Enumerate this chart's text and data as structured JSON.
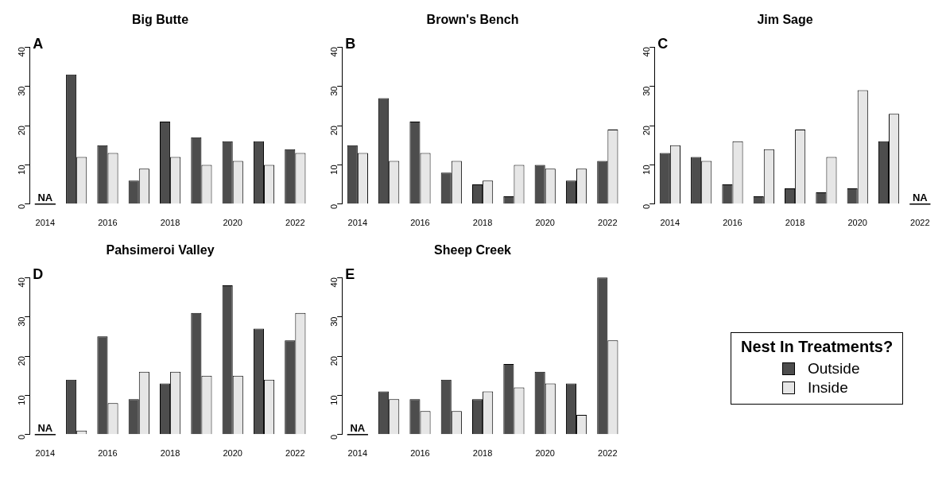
{
  "chart_data": [
    {
      "type": "bar",
      "title": "Big Butte",
      "categories": [
        "2014",
        null,
        "2016",
        null,
        "2018",
        null,
        "2020",
        null,
        "2022"
      ],
      "series": [
        {
          "color": "#4d4d4d",
          "values": [
            null,
            33,
            15,
            6,
            21,
            17,
            16,
            16,
            14
          ]
        },
        {
          "color": "#e6e6e6",
          "values": [
            null,
            12,
            13,
            9,
            12,
            10,
            11,
            10,
            13
          ]
        }
      ],
      "ylim": [
        0,
        40
      ],
      "yticks": [
        0,
        10,
        20,
        30,
        40
      ],
      "grid": false,
      "legend": false,
      "annotations": [
        "A",
        "NA"
      ]
    },
    {
      "type": "bar",
      "title": "Brown's Bench",
      "categories": [
        "2014",
        null,
        "2016",
        null,
        "2018",
        null,
        "2020",
        null,
        "2022"
      ],
      "series": [
        {
          "color": "#4d4d4d",
          "values": [
            15,
            27,
            21,
            8,
            5,
            2,
            10,
            6,
            11
          ]
        },
        {
          "color": "#e6e6e6",
          "values": [
            13,
            11,
            13,
            11,
            6,
            10,
            9,
            9,
            19
          ]
        }
      ],
      "ylim": [
        0,
        40
      ],
      "yticks": [
        0,
        10,
        20,
        30,
        40
      ],
      "grid": false,
      "legend": false,
      "annotations": [
        "B"
      ]
    },
    {
      "type": "bar",
      "title": "Jim Sage",
      "categories": [
        "2014",
        null,
        "2016",
        null,
        "2018",
        null,
        "2020",
        null,
        "2022"
      ],
      "series": [
        {
          "color": "#4d4d4d",
          "values": [
            13,
            12,
            5,
            2,
            4,
            3,
            4,
            16,
            null
          ]
        },
        {
          "color": "#e6e6e6",
          "values": [
            15,
            11,
            16,
            14,
            19,
            12,
            29,
            23,
            null
          ]
        }
      ],
      "ylim": [
        0,
        40
      ],
      "yticks": [
        0,
        10,
        20,
        30,
        40
      ],
      "grid": false,
      "legend": false,
      "annotations": [
        "C",
        "NA"
      ]
    },
    {
      "type": "bar",
      "title": "Pahsimeroi Valley",
      "categories": [
        "2014",
        null,
        "2016",
        null,
        "2018",
        null,
        "2020",
        null,
        "2022"
      ],
      "series": [
        {
          "color": "#4d4d4d",
          "values": [
            null,
            14,
            25,
            9,
            13,
            31,
            38,
            27,
            24
          ]
        },
        {
          "color": "#e6e6e6",
          "values": [
            null,
            1,
            8,
            16,
            16,
            15,
            15,
            14,
            31
          ]
        }
      ],
      "ylim": [
        0,
        40
      ],
      "yticks": [
        0,
        10,
        20,
        30,
        40
      ],
      "grid": false,
      "legend": false,
      "annotations": [
        "D",
        "NA"
      ]
    },
    {
      "type": "bar",
      "title": "Sheep Creek",
      "categories": [
        "2014",
        null,
        "2016",
        null,
        "2018",
        null,
        "2020",
        null,
        "2022"
      ],
      "series": [
        {
          "name": "Outside",
          "color": "#4d4d4d",
          "values": [
            null,
            11,
            9,
            14,
            9,
            18,
            16,
            13,
            40
          ]
        },
        {
          "name": "Inside",
          "color": "#e6e6e6",
          "values": [
            null,
            9,
            6,
            6,
            11,
            12,
            13,
            5,
            24
          ]
        }
      ],
      "ylim": [
        0,
        40
      ],
      "yticks": [
        0,
        10,
        20,
        30,
        40
      ],
      "grid": false,
      "legend": "right",
      "legend_title": "Nest In Treatments?",
      "annotations": [
        "E",
        "NA"
      ]
    }
  ]
}
